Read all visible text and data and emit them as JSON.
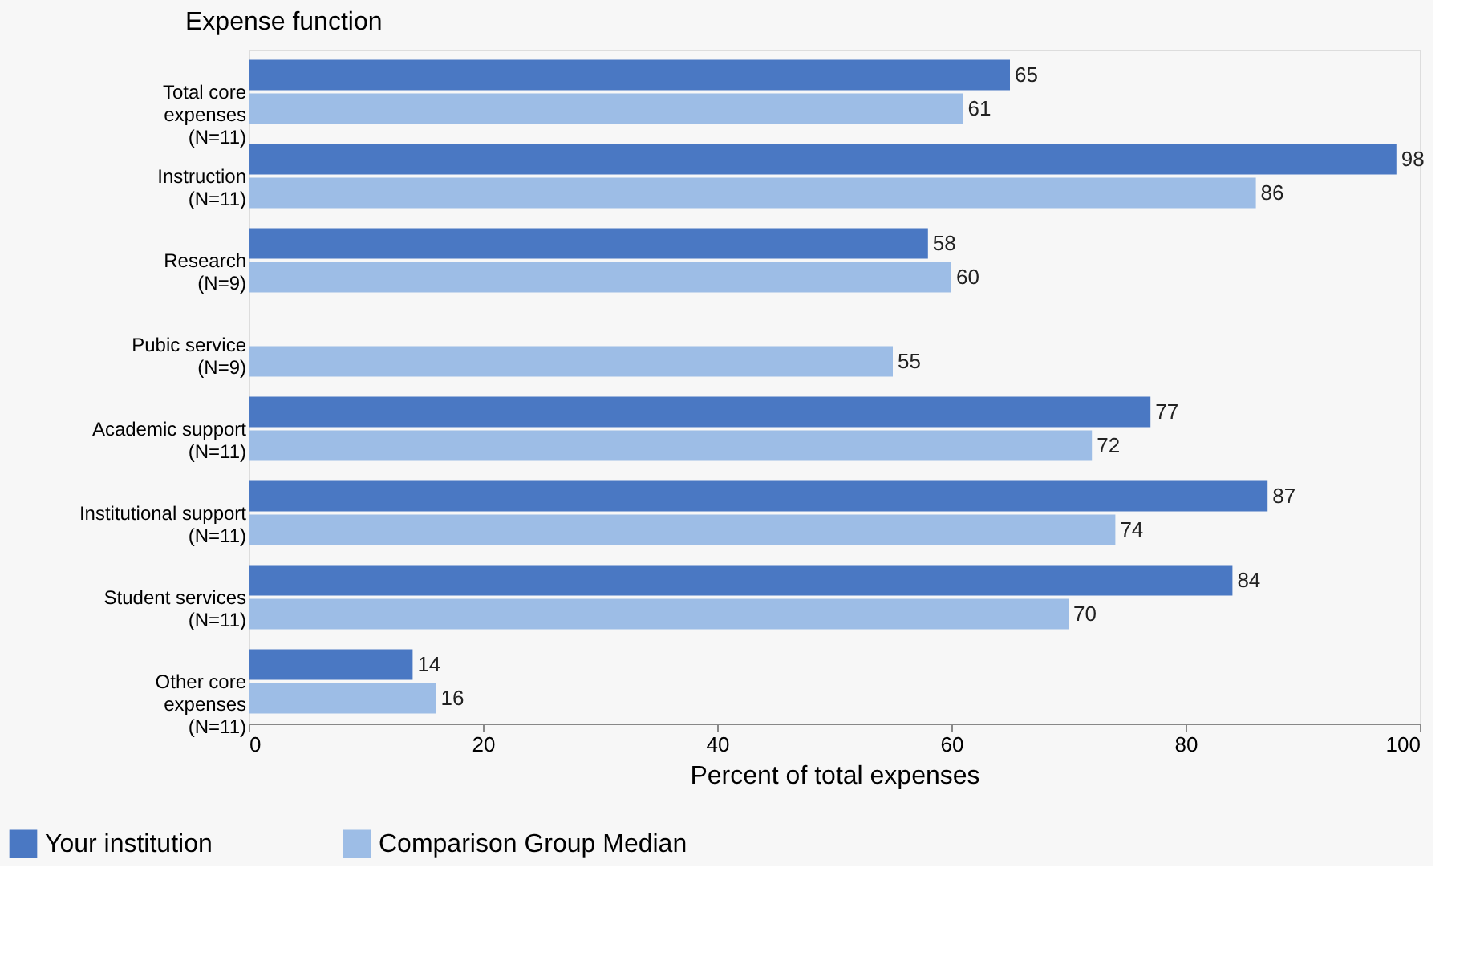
{
  "chart_data": {
    "type": "bar",
    "orientation": "horizontal",
    "ylabel": "Expense function",
    "xlabel": "Percent of total expenses",
    "categories": [
      "Total core\nexpenses\n(N=11)",
      "Instruction\n(N=11)",
      "Research\n(N=9)",
      "Pubic service\n(N=9)",
      "Academic support\n(N=11)",
      "Institutional support\n(N=11)",
      "Student services\n(N=11)",
      "Other core\nexpenses\n(N=11)"
    ],
    "series": [
      {
        "name": "Your institution",
        "color": "#4a78c3",
        "values": [
          65,
          98,
          58,
          null,
          77,
          87,
          84,
          14
        ]
      },
      {
        "name": "Comparison Group Median",
        "color": "#9dbde6",
        "values": [
          61,
          86,
          60,
          55,
          72,
          74,
          70,
          16
        ]
      }
    ],
    "xlim": [
      0,
      100
    ],
    "xticks": [
      0,
      20,
      40,
      60,
      80,
      100
    ],
    "grid": false,
    "legend": "bottom left",
    "data_labels": true
  }
}
